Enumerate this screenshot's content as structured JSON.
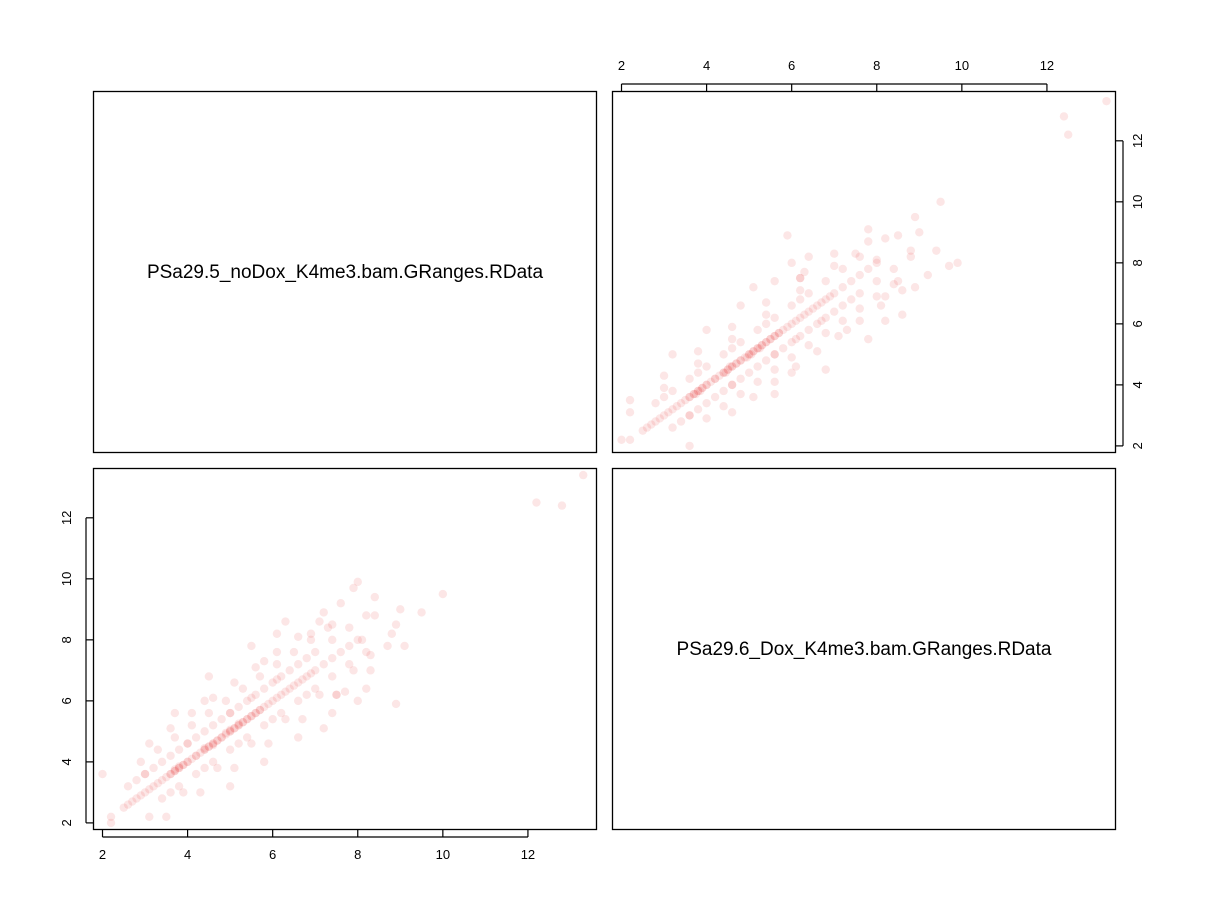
{
  "chart_data": {
    "type": "scatter",
    "kind": "pairs-matrix",
    "variables": [
      "PSa29.5_noDox_K4me3.bam.GRanges.RData",
      "PSa29.6_Dox_K4me3.bam.GRanges.RData"
    ],
    "axis_range": [
      1.8,
      13.6
    ],
    "ticks": [
      2,
      4,
      6,
      8,
      10,
      12
    ],
    "point_color": "#e63c3c",
    "point_alpha": 0.13,
    "grid": false,
    "points": [
      [
        2.2,
        2.2
      ],
      [
        2.5,
        2.5
      ],
      [
        2.6,
        2.6
      ],
      [
        2.7,
        2.7
      ],
      [
        2.8,
        2.8
      ],
      [
        2.9,
        2.9
      ],
      [
        3.0,
        3.0
      ],
      [
        3.1,
        3.1
      ],
      [
        3.2,
        3.2
      ],
      [
        3.3,
        3.3
      ],
      [
        3.4,
        3.4
      ],
      [
        3.5,
        3.5
      ],
      [
        3.6,
        3.6
      ],
      [
        3.7,
        3.7
      ],
      [
        3.8,
        3.8
      ],
      [
        3.9,
        3.9
      ],
      [
        4.0,
        4.0
      ],
      [
        4.1,
        4.1
      ],
      [
        4.2,
        4.2
      ],
      [
        4.3,
        4.3
      ],
      [
        4.4,
        4.4
      ],
      [
        4.5,
        4.5
      ],
      [
        4.6,
        4.6
      ],
      [
        4.7,
        4.7
      ],
      [
        4.8,
        4.8
      ],
      [
        4.9,
        4.9
      ],
      [
        5.0,
        5.0
      ],
      [
        5.1,
        5.1
      ],
      [
        5.2,
        5.2
      ],
      [
        5.3,
        5.3
      ],
      [
        5.4,
        5.4
      ],
      [
        5.5,
        5.5
      ],
      [
        5.6,
        5.6
      ],
      [
        5.7,
        5.7
      ],
      [
        5.8,
        5.8
      ],
      [
        5.9,
        5.9
      ],
      [
        6.0,
        6.0
      ],
      [
        6.1,
        6.1
      ],
      [
        6.2,
        6.2
      ],
      [
        6.3,
        6.3
      ],
      [
        6.4,
        6.4
      ],
      [
        6.5,
        6.5
      ],
      [
        6.6,
        6.6
      ],
      [
        6.7,
        6.7
      ],
      [
        6.8,
        6.8
      ],
      [
        6.9,
        6.9
      ],
      [
        7.0,
        7.0
      ],
      [
        7.2,
        7.2
      ],
      [
        7.4,
        7.4
      ],
      [
        7.6,
        7.6
      ],
      [
        7.8,
        7.8
      ],
      [
        8.0,
        8.0
      ],
      [
        3.6,
        3.6
      ],
      [
        3.8,
        3.8
      ],
      [
        4.0,
        4.0
      ],
      [
        4.2,
        4.2
      ],
      [
        4.4,
        4.4
      ],
      [
        4.6,
        4.6
      ],
      [
        4.8,
        4.8
      ],
      [
        5.0,
        5.0
      ],
      [
        5.2,
        5.2
      ],
      [
        5.4,
        5.4
      ],
      [
        5.6,
        5.6
      ],
      [
        3.7,
        3.7
      ],
      [
        3.9,
        3.9
      ],
      [
        4.5,
        4.5
      ],
      [
        4.7,
        4.7
      ],
      [
        5.1,
        5.1
      ],
      [
        5.3,
        5.3
      ],
      [
        5.5,
        5.5
      ],
      [
        5.7,
        5.7
      ],
      [
        3.8,
        3.85
      ],
      [
        4.6,
        4.55
      ],
      [
        4.9,
        4.95
      ],
      [
        5.0,
        5.05
      ],
      [
        5.2,
        5.25
      ],
      [
        3.7,
        3.75
      ],
      [
        4.4,
        4.45
      ],
      [
        2.6,
        3.2
      ],
      [
        2.8,
        3.4
      ],
      [
        3.0,
        3.6
      ],
      [
        3.2,
        3.8
      ],
      [
        3.4,
        4.0
      ],
      [
        3.6,
        4.2
      ],
      [
        3.8,
        4.4
      ],
      [
        4.0,
        4.6
      ],
      [
        4.2,
        4.8
      ],
      [
        4.4,
        5.0
      ],
      [
        4.6,
        5.2
      ],
      [
        4.8,
        5.4
      ],
      [
        5.0,
        5.6
      ],
      [
        5.2,
        5.8
      ],
      [
        5.4,
        6.0
      ],
      [
        5.6,
        6.2
      ],
      [
        5.8,
        6.4
      ],
      [
        6.0,
        6.6
      ],
      [
        6.2,
        6.8
      ],
      [
        6.4,
        7.0
      ],
      [
        6.6,
        7.2
      ],
      [
        6.8,
        7.4
      ],
      [
        7.0,
        7.6
      ],
      [
        7.4,
        8.0
      ],
      [
        7.8,
        8.4
      ],
      [
        8.2,
        8.8
      ],
      [
        3.0,
        3.6
      ],
      [
        4.0,
        4.6
      ],
      [
        5.0,
        5.6
      ],
      [
        5.5,
        6.1
      ],
      [
        6.1,
        6.7
      ],
      [
        2.9,
        4.0
      ],
      [
        3.3,
        4.4
      ],
      [
        3.7,
        4.8
      ],
      [
        4.1,
        5.2
      ],
      [
        4.5,
        5.6
      ],
      [
        4.9,
        6.0
      ],
      [
        5.3,
        6.4
      ],
      [
        5.7,
        6.8
      ],
      [
        6.1,
        7.2
      ],
      [
        6.5,
        7.6
      ],
      [
        6.9,
        8.0
      ],
      [
        7.3,
        8.4
      ],
      [
        3.1,
        4.6
      ],
      [
        3.6,
        5.1
      ],
      [
        4.1,
        5.6
      ],
      [
        4.6,
        6.1
      ],
      [
        5.1,
        6.6
      ],
      [
        5.6,
        7.1
      ],
      [
        6.1,
        7.6
      ],
      [
        6.6,
        8.1
      ],
      [
        7.1,
        8.6
      ],
      [
        4.5,
        6.8
      ],
      [
        5.5,
        7.8
      ],
      [
        6.3,
        8.6
      ],
      [
        3.4,
        2.8
      ],
      [
        3.8,
        3.2
      ],
      [
        4.2,
        3.6
      ],
      [
        4.6,
        4.0
      ],
      [
        5.0,
        4.4
      ],
      [
        5.4,
        4.8
      ],
      [
        5.8,
        5.2
      ],
      [
        6.2,
        5.6
      ],
      [
        6.6,
        6.0
      ],
      [
        7.0,
        6.4
      ],
      [
        7.4,
        6.8
      ],
      [
        7.8,
        7.2
      ],
      [
        8.2,
        7.6
      ],
      [
        3.6,
        3.0
      ],
      [
        4.4,
        3.8
      ],
      [
        5.2,
        4.6
      ],
      [
        6.0,
        5.4
      ],
      [
        6.8,
        6.2
      ],
      [
        3.1,
        2.2
      ],
      [
        3.9,
        3.0
      ],
      [
        4.7,
        3.8
      ],
      [
        5.5,
        4.6
      ],
      [
        6.3,
        5.4
      ],
      [
        7.1,
        6.2
      ],
      [
        7.9,
        7.0
      ],
      [
        8.7,
        7.8
      ],
      [
        4.3,
        3.0
      ],
      [
        5.1,
        3.8
      ],
      [
        5.9,
        4.6
      ],
      [
        6.7,
        5.4
      ],
      [
        7.5,
        6.2
      ],
      [
        8.3,
        7.0
      ],
      [
        9.1,
        7.8
      ],
      [
        5.0,
        3.2
      ],
      [
        5.8,
        4.0
      ],
      [
        6.6,
        4.8
      ],
      [
        7.4,
        5.6
      ],
      [
        8.2,
        6.4
      ],
      [
        7.2,
        8.9
      ],
      [
        7.6,
        9.2
      ],
      [
        8.0,
        9.9
      ],
      [
        7.9,
        9.7
      ],
      [
        8.4,
        9.4
      ],
      [
        9.0,
        9.0
      ],
      [
        8.9,
        8.5
      ],
      [
        9.5,
        8.9
      ],
      [
        10.0,
        9.5
      ],
      [
        8.4,
        8.8
      ],
      [
        8.8,
        8.2
      ],
      [
        8.9,
        5.9
      ],
      [
        8.0,
        6.0
      ],
      [
        7.7,
        6.3
      ],
      [
        7.5,
        6.2
      ],
      [
        7.2,
        5.1
      ],
      [
        3.5,
        2.2
      ],
      [
        2.0,
        3.6
      ],
      [
        2.2,
        2.0
      ],
      [
        3.7,
        5.6
      ],
      [
        4.4,
        6.0
      ],
      [
        5.8,
        7.3
      ],
      [
        6.1,
        8.2
      ],
      [
        6.9,
        8.2
      ],
      [
        7.4,
        8.5
      ],
      [
        8.1,
        8.0
      ],
      [
        8.3,
        7.5
      ],
      [
        12.2,
        12.5
      ],
      [
        12.8,
        12.4
      ],
      [
        13.3,
        13.4
      ]
    ]
  },
  "diagonal_labels": {
    "top_left": "PSa29.5_noDox_K4me3.bam.GRanges.RData",
    "bottom_right": "PSa29.6_Dox_K4me3.bam.GRanges.RData"
  },
  "axis_tick_labels": [
    "2",
    "4",
    "6",
    "8",
    "10",
    "12"
  ]
}
